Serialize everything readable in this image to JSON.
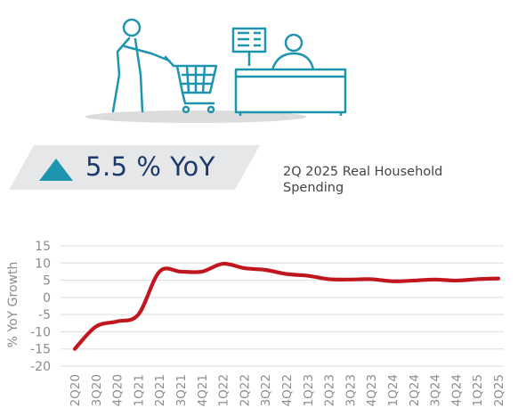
{
  "headline": "5.5 % YoY",
  "caption": "2Q 2025 Real Household Spending",
  "colors": {
    "accent": "#1e95ae",
    "headline": "#1b3a6b",
    "line": "#c0161d",
    "banner": "#e6e7e8"
  },
  "icons": [
    "shopper-with-cart-icon",
    "cashier-at-register-icon"
  ],
  "chart_data": {
    "type": "line",
    "ylabel": "% YoY Growth",
    "xlabel": "",
    "ylim": [
      -20,
      15
    ],
    "yticks": [
      15,
      10,
      5,
      0,
      -5,
      -10,
      -15,
      -20
    ],
    "grid": true,
    "x": [
      "2Q20",
      "3Q20",
      "4Q20",
      "1Q21",
      "2Q21",
      "3Q21",
      "4Q21",
      "1Q22",
      "2Q22",
      "3Q22",
      "4Q22",
      "1Q23",
      "2Q23",
      "3Q23",
      "4Q23",
      "1Q24",
      "2Q24",
      "3Q24",
      "4Q24",
      "1Q25",
      "2Q25"
    ],
    "series": [
      {
        "values": [
          -15,
          -8.5,
          -7,
          -5,
          7.5,
          7.5,
          7.5,
          9.8,
          8.5,
          8,
          6.8,
          6.3,
          5.3,
          5.2,
          5.3,
          4.7,
          4.9,
          5.2,
          4.9,
          5.3,
          5.5
        ]
      }
    ]
  }
}
